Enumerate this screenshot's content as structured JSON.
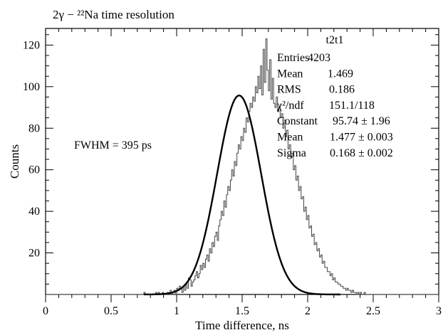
{
  "chart_data": {
    "type": "line",
    "title": "2γ − ²²Na time resolution",
    "xlabel": "Time difference, ns",
    "ylabel": "Counts",
    "xlim": [
      0,
      3
    ],
    "ylim": [
      0,
      128
    ],
    "x_major_ticks": [
      0,
      0.5,
      1,
      1.5,
      2,
      2.5,
      3
    ],
    "x_tick_labels": [
      "0",
      "0.5",
      "1",
      "1.5",
      "2",
      "2.5",
      "3"
    ],
    "y_major_ticks": [
      20,
      40,
      60,
      80,
      100,
      120
    ],
    "y_tick_labels": [
      "20",
      "40",
      "60",
      "80",
      "100",
      "120"
    ],
    "grid": false,
    "annotation": "FWHM = 395 ps",
    "stats_box": {
      "name": "t2t1",
      "rows": [
        {
          "label": "Entries",
          "value": "4203"
        },
        {
          "label": "Mean",
          "value": "1.469"
        },
        {
          "label": "RMS",
          "value": "0.186"
        },
        {
          "label": "χ²/ndf",
          "value": "151.1/118"
        },
        {
          "label": "Constant",
          "value": "95.74 ± 1.96"
        },
        {
          "label": "Mean",
          "value": "1.477 ± 0.003"
        },
        {
          "label": "Sigma",
          "value": "0.168 ± 0.002"
        }
      ]
    },
    "series": [
      {
        "style": "histogram",
        "bin_width": 0.01,
        "x_start": 0.6,
        "counts": [
          0,
          0,
          0,
          0,
          0,
          0,
          0,
          0,
          0,
          0,
          0,
          0,
          0,
          0,
          0,
          1,
          0,
          0,
          0,
          0,
          0,
          0,
          0,
          0,
          1,
          0,
          1,
          0,
          0,
          1,
          0,
          0,
          0,
          1,
          0,
          2,
          0,
          1,
          2,
          0,
          3,
          2,
          4,
          3,
          1,
          4,
          2,
          5,
          3,
          8,
          7,
          4,
          6,
          7,
          9,
          11,
          8,
          10,
          14,
          12,
          15,
          13,
          17,
          19,
          16,
          22,
          20,
          25,
          23,
          28,
          30,
          26,
          33,
          36,
          40,
          38,
          45,
          42,
          48,
          52,
          50,
          55,
          60,
          57,
          64,
          62,
          68,
          72,
          70,
          76,
          74,
          80,
          78,
          85,
          83,
          88,
          92,
          90,
          95,
          93,
          100,
          97,
          105,
          99,
          110,
          96,
          118,
          102,
          123,
          108,
          98,
          113,
          94,
          104,
          92,
          90,
          95,
          88,
          90,
          85,
          87,
          80,
          84,
          76,
          79,
          70,
          72,
          66,
          68,
          60,
          62,
          55,
          57,
          50,
          52,
          46,
          47,
          40,
          42,
          36,
          38,
          32,
          33,
          28,
          29,
          24,
          25,
          21,
          22,
          18,
          19,
          15,
          16,
          13,
          13,
          11,
          11,
          9,
          10,
          7,
          8,
          6,
          6,
          5,
          5,
          4,
          4,
          3,
          3,
          2,
          3,
          2,
          2,
          1,
          2,
          1,
          1,
          0,
          1,
          0,
          1,
          0,
          0,
          1,
          0,
          0,
          0,
          0,
          0,
          0,
          0,
          0,
          0,
          0,
          0,
          0,
          0,
          0,
          0,
          0
        ]
      },
      {
        "style": "fit",
        "function": "gaussian",
        "constant": 95.74,
        "mean": 1.477,
        "sigma": 0.168
      }
    ]
  }
}
